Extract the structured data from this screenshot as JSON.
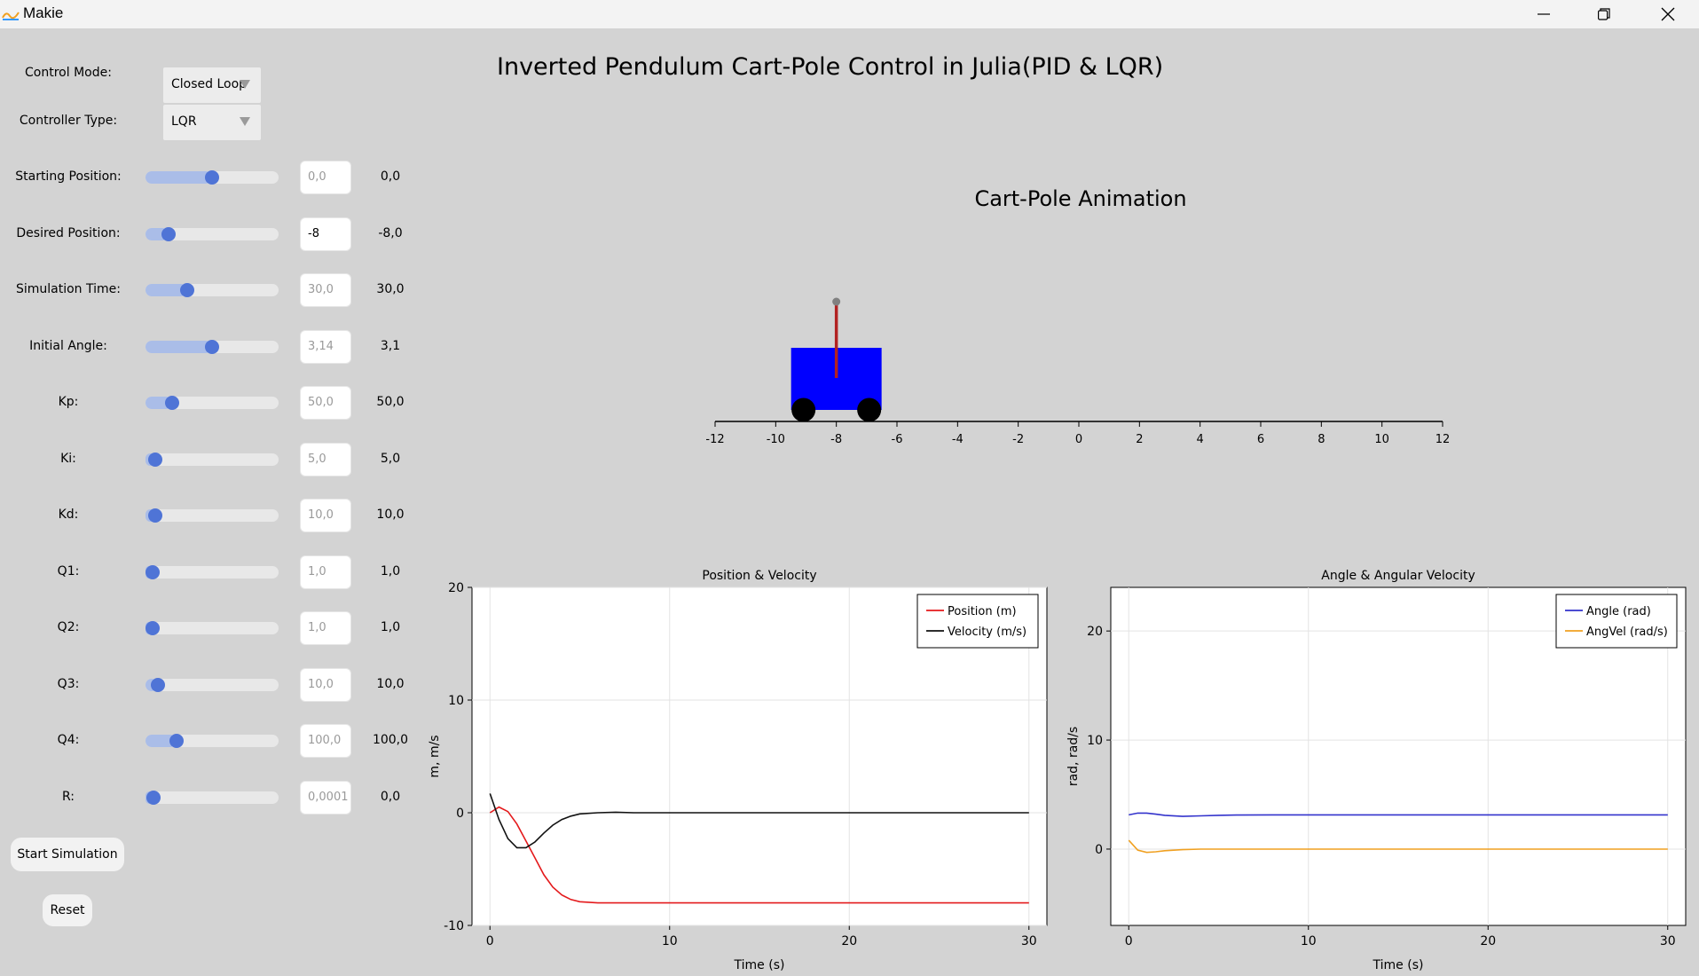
{
  "window": {
    "title": "Makie",
    "minimize_icon": "minimize-icon",
    "maximize_icon": "restore-icon",
    "close_icon": "close-icon"
  },
  "main_title": "Inverted Pendulum Cart-Pole Control in Julia(PID & LQR)",
  "controls": {
    "control_mode": {
      "label": "Control Mode:",
      "value": "Closed Loop"
    },
    "controller_type": {
      "label": "Controller Type:",
      "value": "LQR"
    },
    "sliders": [
      {
        "label": "Starting Position:",
        "input": "0,0",
        "value": "0,0",
        "fraction": 0.5,
        "active": false
      },
      {
        "label": "Desired Position:",
        "input": "-8",
        "value": "-8,0",
        "fraction": 0.17,
        "active": true
      },
      {
        "label": "Simulation Time:",
        "input": "30,0",
        "value": "30,0",
        "fraction": 0.31,
        "active": false
      },
      {
        "label": "Initial Angle:",
        "input": "3,14",
        "value": "3,1",
        "fraction": 0.5,
        "active": false
      },
      {
        "label": "Kp:",
        "input": "50,0",
        "value": "50,0",
        "fraction": 0.2,
        "active": false
      },
      {
        "label": "Ki:",
        "input": "5,0",
        "value": "5,0",
        "fraction": 0.07,
        "active": false
      },
      {
        "label": "Kd:",
        "input": "10,0",
        "value": "10,0",
        "fraction": 0.07,
        "active": false
      },
      {
        "label": "Q1:",
        "input": "1,0",
        "value": "1,0",
        "fraction": 0.05,
        "active": false
      },
      {
        "label": "Q2:",
        "input": "1,0",
        "value": "1,0",
        "fraction": 0.05,
        "active": false
      },
      {
        "label": "Q3:",
        "input": "10,0",
        "value": "10,0",
        "fraction": 0.09,
        "active": false
      },
      {
        "label": "Q4:",
        "input": "100,0",
        "value": "100,0",
        "fraction": 0.23,
        "active": false
      },
      {
        "label": "R:",
        "input": "0,0001",
        "value": "0,0",
        "fraction": 0.06,
        "active": false
      }
    ],
    "start_button": "Start Simulation",
    "reset_button": "Reset"
  },
  "animation": {
    "title": "Cart-Pole Animation",
    "track_range": [
      -12,
      12
    ],
    "ticks": [
      "-12",
      "-10",
      "-8",
      "-6",
      "-4",
      "-2",
      "0",
      "2",
      "4",
      "6",
      "8",
      "10",
      "12"
    ],
    "cart_position": -8,
    "pole_angle": 0,
    "colors": {
      "cart": "#0000ff",
      "pole": "#b22222",
      "wheels": "#000000",
      "bob": "#808080"
    }
  },
  "chart_data": [
    {
      "type": "line",
      "title": "Position & Velocity",
      "xlabel": "Time (s)",
      "ylabel": "m, m/s",
      "xlim": [
        -1,
        31
      ],
      "ylim": [
        -10,
        20
      ],
      "xticks": [
        "0",
        "10",
        "20",
        "30"
      ],
      "yticks": [
        "-10",
        "0",
        "10",
        "20"
      ],
      "grid": true,
      "legend_position": "top-right",
      "series": [
        {
          "name": "Position (m)",
          "color": "#e41a1c",
          "x": [
            0,
            0.5,
            1,
            1.5,
            2,
            2.5,
            3,
            3.5,
            4,
            4.5,
            5,
            6,
            7,
            8,
            10,
            15,
            20,
            25,
            30
          ],
          "y": [
            0,
            0.5,
            0.1,
            -1.0,
            -2.5,
            -4.0,
            -5.5,
            -6.6,
            -7.3,
            -7.7,
            -7.9,
            -8.0,
            -8.0,
            -8.0,
            -8.0,
            -8.0,
            -8.0,
            -8.0,
            -8.0
          ]
        },
        {
          "name": "Velocity (m/s)",
          "color": "#111111",
          "x": [
            0,
            0.5,
            1,
            1.5,
            2,
            2.5,
            3,
            3.5,
            4,
            4.5,
            5,
            6,
            7,
            8,
            10,
            15,
            20,
            25,
            30
          ],
          "y": [
            1.7,
            -0.6,
            -2.3,
            -3.1,
            -3.1,
            -2.6,
            -1.8,
            -1.1,
            -0.6,
            -0.3,
            -0.1,
            0.0,
            0.05,
            0.0,
            0.0,
            0.0,
            0.0,
            0.0,
            0.0
          ]
        }
      ]
    },
    {
      "type": "line",
      "title": "Angle & Angular Velocity",
      "xlabel": "Time (s)",
      "ylabel": "rad, rad/s",
      "xlim": [
        -1,
        31
      ],
      "ylim": [
        -7,
        24
      ],
      "xticks": [
        "0",
        "10",
        "20",
        "30"
      ],
      "yticks": [
        "0",
        "10",
        "20"
      ],
      "grid": true,
      "legend_position": "top-right",
      "series": [
        {
          "name": "Angle (rad)",
          "color": "#3333cc",
          "x": [
            0,
            0.5,
            1,
            1.5,
            2,
            3,
            4,
            5,
            6,
            8,
            10,
            15,
            20,
            25,
            30
          ],
          "y": [
            3.14,
            3.3,
            3.3,
            3.2,
            3.1,
            3.0,
            3.05,
            3.1,
            3.12,
            3.14,
            3.14,
            3.14,
            3.14,
            3.14,
            3.14
          ]
        },
        {
          "name": "AngVel (rad/s)",
          "color": "#f0a020",
          "x": [
            0,
            0.5,
            1,
            1.5,
            2,
            3,
            4,
            5,
            6,
            8,
            10,
            15,
            20,
            25,
            30
          ],
          "y": [
            0.8,
            -0.1,
            -0.3,
            -0.25,
            -0.15,
            -0.05,
            0.0,
            0.0,
            0.0,
            0.0,
            0.0,
            0.0,
            0.0,
            0.0,
            0.0
          ]
        }
      ]
    }
  ]
}
